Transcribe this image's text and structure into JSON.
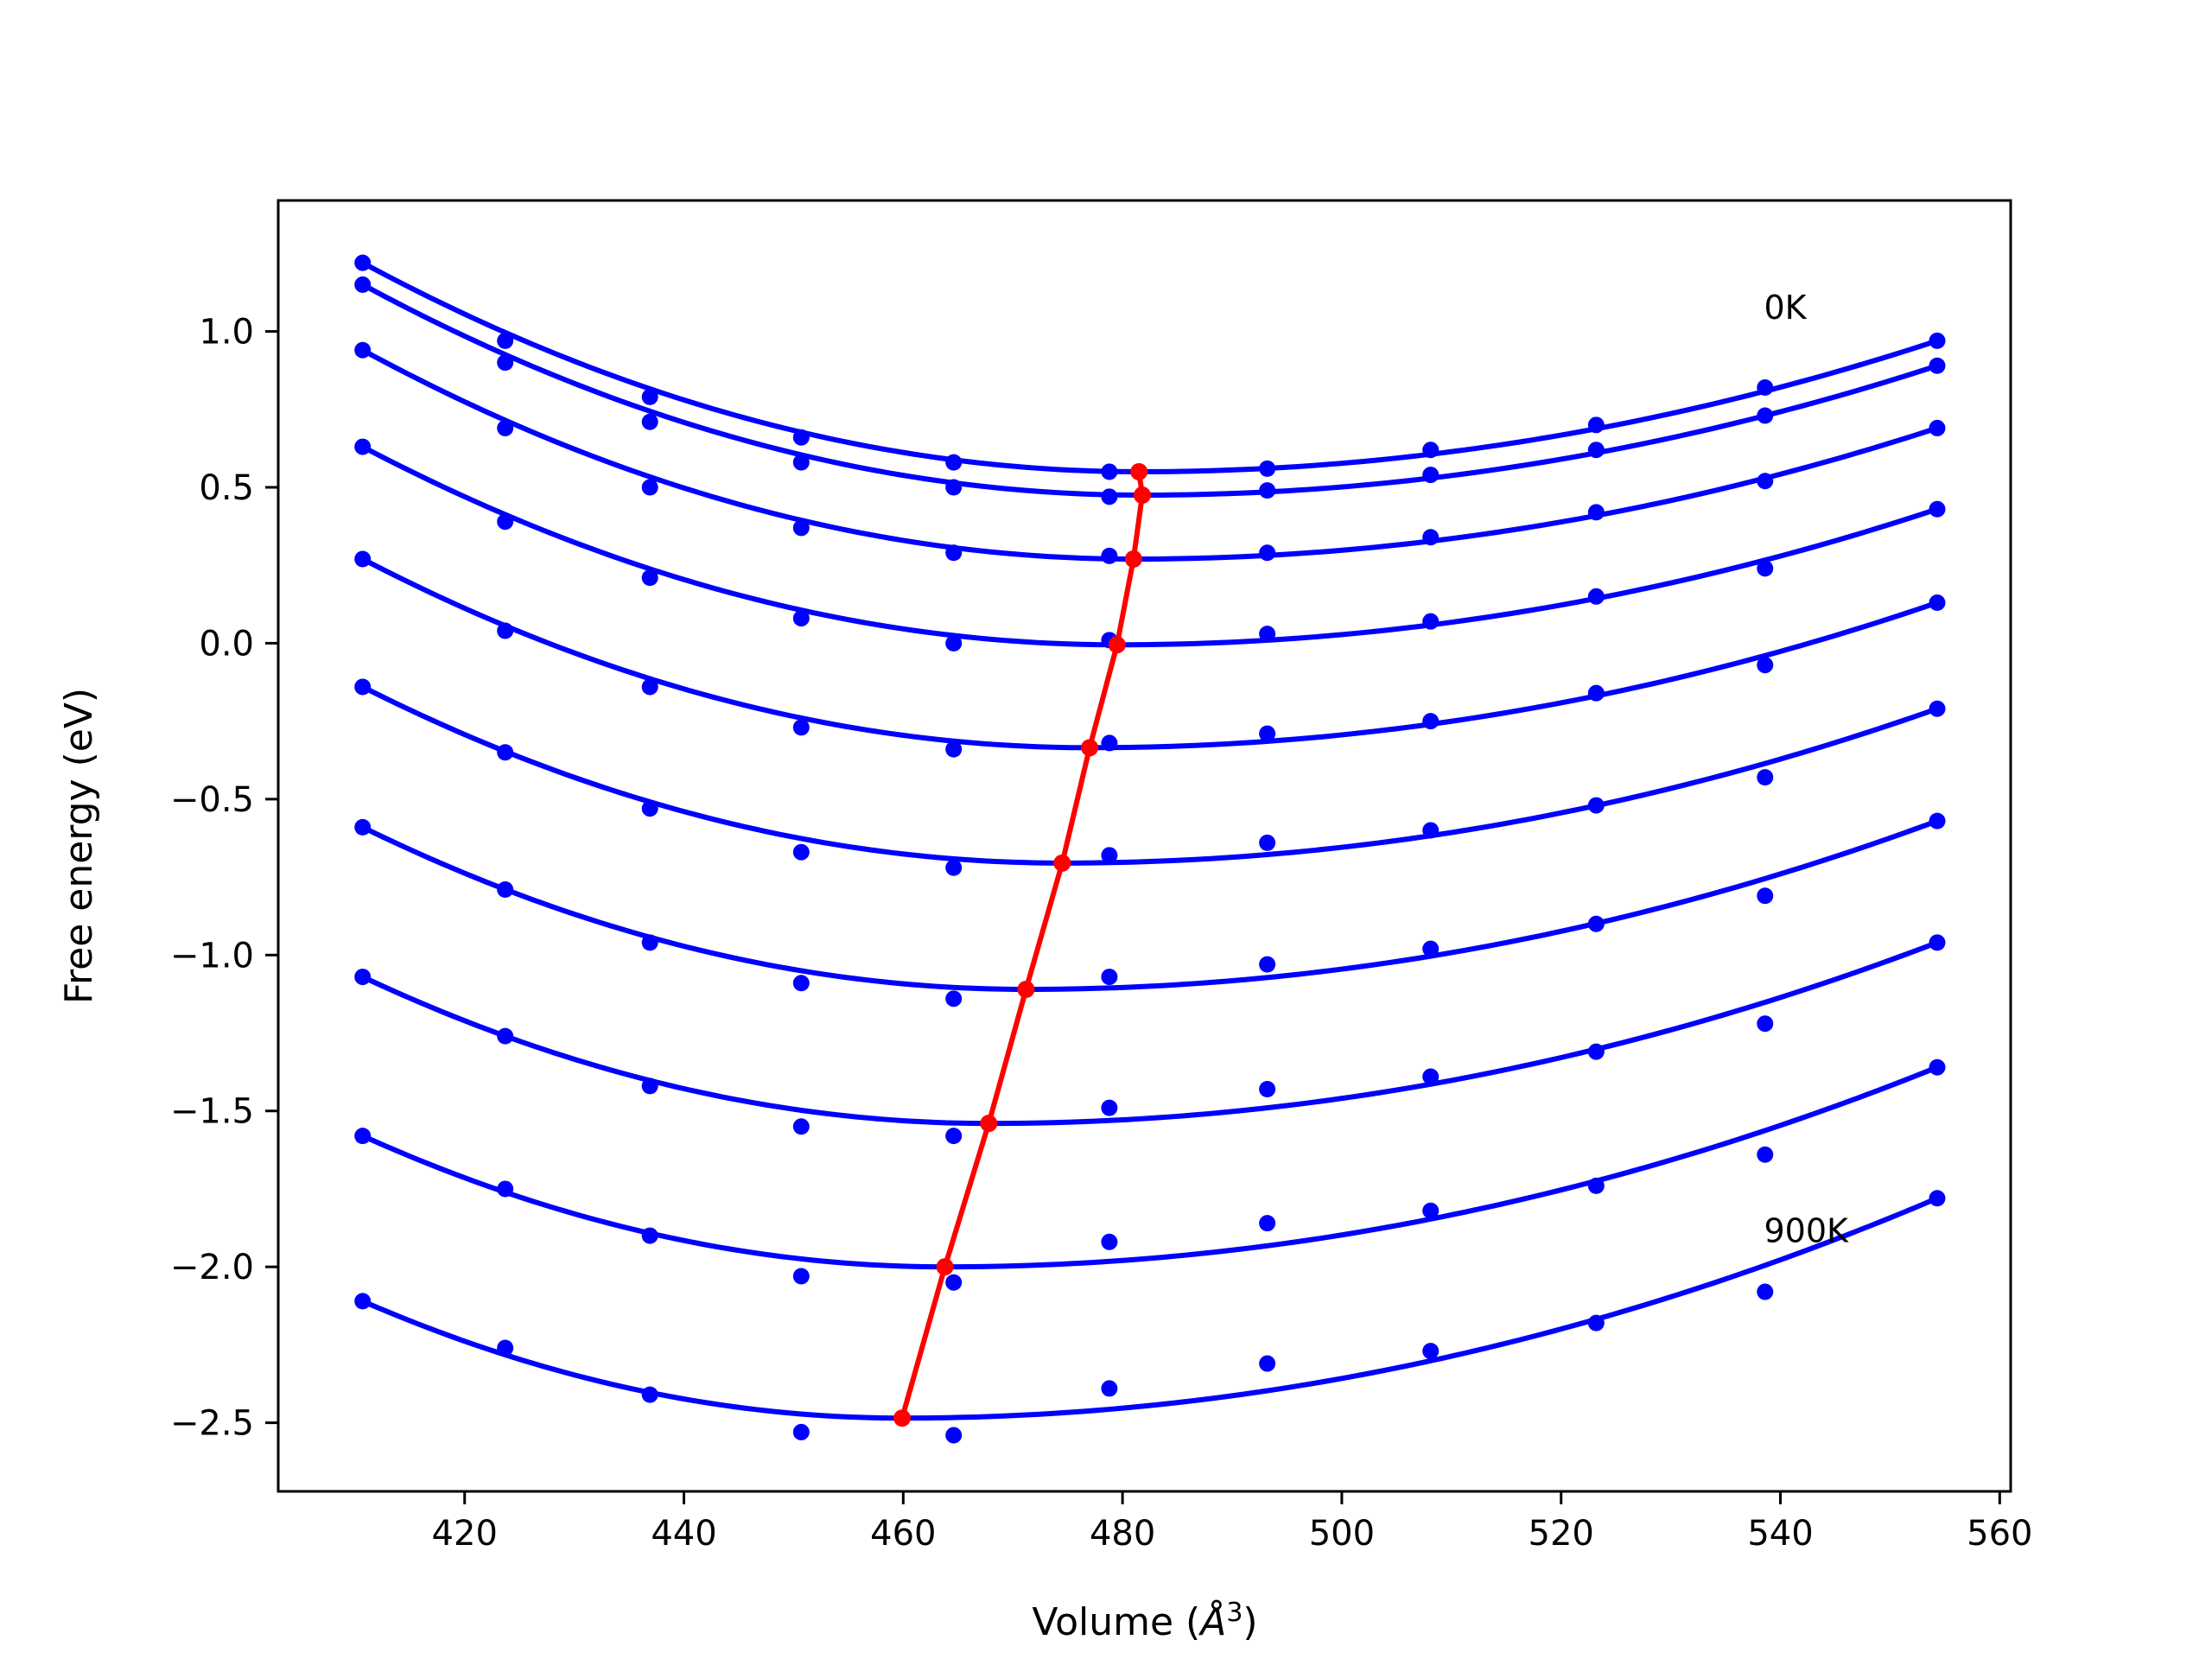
{
  "chart_data": {
    "type": "line",
    "xlabel": "Volume (",
    "xlabel_unit_symbol": "Å",
    "xlabel_superscript": "3",
    "xlabel_close": ")",
    "ylabel": "Free energy (eV)",
    "xlim": [
      403,
      561
    ],
    "ylim": [
      -2.72,
      1.42
    ],
    "xticks": [
      420,
      440,
      460,
      480,
      500,
      520,
      540,
      560
    ],
    "yticks": [
      -2.5,
      -2.0,
      -1.5,
      -1.0,
      -0.5,
      0.0,
      0.5,
      1.0
    ],
    "ytick_labels": [
      "−2.5",
      "−2.0",
      "−1.5",
      "−1.0",
      "−0.5",
      "0.0",
      "0.5",
      "1.0"
    ],
    "grid": false,
    "annotations": [
      {
        "text": "0K",
        "x": 538.5,
        "y": 1.04
      },
      {
        "text": "900K",
        "x": 538.5,
        "y": -1.92
      }
    ],
    "colors": {
      "data": "#0000ff",
      "fit": "#0000ff",
      "minimum_path": "#ff0000"
    },
    "volumes": [
      410.7,
      423.7,
      436.9,
      450.7,
      464.6,
      478.8,
      493.2,
      508.1,
      523.2,
      538.6,
      554.3
    ],
    "series": [
      {
        "values": [
          1.22,
          0.97,
          0.79,
          0.66,
          0.58,
          0.55,
          0.56,
          0.62,
          0.7,
          0.82,
          0.97
        ],
        "min_volume": 481.5,
        "min_energy": 0.55
      },
      {
        "values": [
          1.15,
          0.9,
          0.71,
          0.58,
          0.5,
          0.47,
          0.49,
          0.54,
          0.62,
          0.73,
          0.89
        ],
        "min_volume": 481.8,
        "min_energy": 0.475
      },
      {
        "values": [
          0.94,
          0.69,
          0.5,
          0.37,
          0.29,
          0.28,
          0.29,
          0.34,
          0.42,
          0.52,
          0.69
        ],
        "min_volume": 481.0,
        "min_energy": 0.27
      },
      {
        "values": [
          0.63,
          0.39,
          0.21,
          0.08,
          0.0,
          0.01,
          0.03,
          0.07,
          0.15,
          0.24,
          0.43
        ],
        "min_volume": 479.5,
        "min_energy": -0.005
      },
      {
        "values": [
          0.27,
          0.04,
          -0.14,
          -0.27,
          -0.34,
          -0.32,
          -0.29,
          -0.25,
          -0.16,
          -0.07,
          0.13
        ],
        "min_volume": 477.0,
        "min_energy": -0.335
      },
      {
        "values": [
          -0.14,
          -0.35,
          -0.53,
          -0.67,
          -0.72,
          -0.68,
          -0.64,
          -0.6,
          -0.52,
          -0.43,
          -0.21
        ],
        "min_volume": 474.5,
        "min_energy": -0.705
      },
      {
        "values": [
          -0.59,
          -0.79,
          -0.96,
          -1.09,
          -1.14,
          -1.07,
          -1.03,
          -0.98,
          -0.9,
          -0.81,
          -0.57
        ],
        "min_volume": 471.2,
        "min_energy": -1.11
      },
      {
        "values": [
          -1.07,
          -1.26,
          -1.42,
          -1.55,
          -1.58,
          -1.49,
          -1.43,
          -1.39,
          -1.31,
          -1.22,
          -0.96
        ],
        "min_volume": 467.8,
        "min_energy": -1.54
      },
      {
        "values": [
          -1.58,
          -1.75,
          -1.9,
          -2.03,
          -2.05,
          -1.92,
          -1.86,
          -1.82,
          -1.74,
          -1.64,
          -1.36
        ],
        "min_volume": 463.8,
        "min_energy": -2.0
      },
      {
        "values": [
          -2.11,
          -2.26,
          -2.41,
          -2.53,
          -2.54,
          -2.39,
          -2.31,
          -2.27,
          -2.18,
          -2.08,
          -1.78
        ],
        "min_volume": 459.9,
        "min_energy": -2.485
      }
    ]
  }
}
